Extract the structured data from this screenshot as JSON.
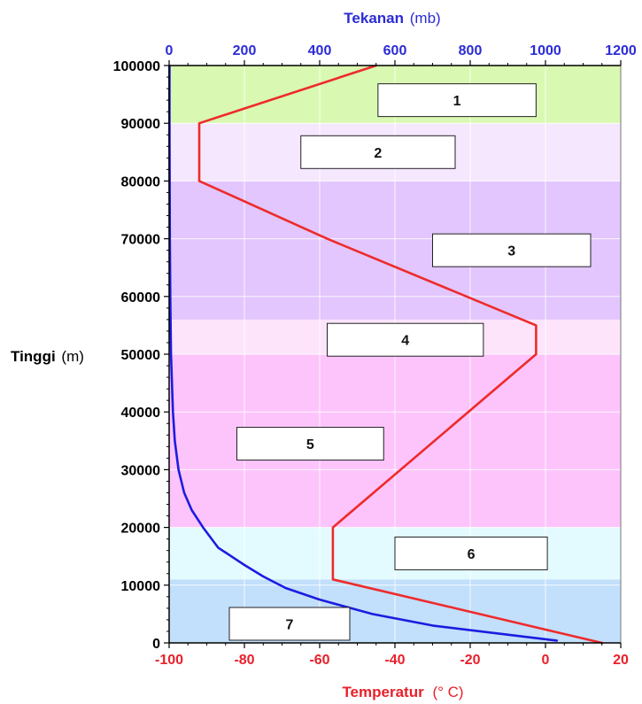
{
  "chart_data": {
    "type": "line",
    "title": "",
    "y_axis": {
      "label_bold": "Tinggi",
      "label_unit": "(m)",
      "range": [
        0,
        100000
      ],
      "ticks": [
        "0",
        "10000",
        "20000",
        "30000",
        "40000",
        "50000",
        "60000",
        "70000",
        "80000",
        "90000",
        "100000"
      ],
      "tick_values": [
        0,
        10000,
        20000,
        30000,
        40000,
        50000,
        60000,
        70000,
        80000,
        90000,
        100000
      ]
    },
    "x_axis_bottom": {
      "label_bold": "Temperatur",
      "label_unit": "(° C)",
      "range": [
        -100,
        20
      ],
      "color": "#e8202a",
      "ticks": [
        "-100",
        "-80",
        "-60",
        "-40",
        "-20",
        "0",
        "20"
      ],
      "tick_values": [
        -100,
        -80,
        -60,
        -40,
        -20,
        0,
        20
      ]
    },
    "x_axis_top": {
      "label_bold": "Tekanan",
      "label_unit": "(mb)",
      "range": [
        0,
        1200
      ],
      "color": "#2b2bd6",
      "ticks": [
        "0",
        "200",
        "400",
        "600",
        "800",
        "1000",
        "1200"
      ],
      "tick_values": [
        0,
        200,
        400,
        600,
        800,
        1000,
        1200
      ]
    },
    "layers": [
      {
        "label": "7",
        "y_from": 0,
        "y_to": 11000,
        "color": "#c2dffb",
        "box": {
          "x_from": -84,
          "x_to": -52,
          "y_center": 3300
        }
      },
      {
        "label": "6",
        "y_from": 11000,
        "y_to": 20000,
        "color": "#e3fbff",
        "box": {
          "x_from": -40,
          "x_to": 0.5,
          "y_center": 15500
        }
      },
      {
        "label": "5",
        "y_from": 20000,
        "y_to": 50000,
        "color": "#fdc4fb",
        "box": {
          "x_from": -82,
          "x_to": -43,
          "y_center": 34500
        }
      },
      {
        "label": "4",
        "y_from": 50000,
        "y_to": 56000,
        "color": "#fde4fb",
        "box": {
          "x_from": -58,
          "x_to": -16.5,
          "y_center": 52500
        }
      },
      {
        "label": "3",
        "y_from": 56000,
        "y_to": 80000,
        "color": "#e2c6fd",
        "box": {
          "x_from": -30,
          "x_to": 12,
          "y_center": 68000
        }
      },
      {
        "label": "2",
        "y_from": 80000,
        "y_to": 90000,
        "color": "#f5e7fd",
        "box": {
          "x_from": -65,
          "x_to": -24,
          "y_center": 85000
        }
      },
      {
        "label": "1",
        "y_from": 90000,
        "y_to": 100000,
        "color": "#d9f9b2",
        "box": {
          "x_from": -44.5,
          "x_to": -2.5,
          "y_center": 94000
        }
      }
    ],
    "series": [
      {
        "name": "Temperatur",
        "color": "#ee2b2b",
        "axis": "bottom",
        "points": [
          [
            15,
            0
          ],
          [
            -56.5,
            11000
          ],
          [
            -56.5,
            20000
          ],
          [
            -2.5,
            50000
          ],
          [
            -2.5,
            55000
          ],
          [
            -58,
            70000
          ],
          [
            -92,
            80000
          ],
          [
            -92,
            90000
          ],
          [
            -45,
            100000
          ]
        ]
      },
      {
        "name": "Tekanan",
        "color": "#1c1ce0",
        "axis": "top",
        "points": [
          [
            1030,
            400
          ],
          [
            700,
            3000
          ],
          [
            540,
            5000
          ],
          [
            400,
            7500
          ],
          [
            310,
            9500
          ],
          [
            250,
            11500
          ],
          [
            200,
            13500
          ],
          [
            130,
            16500
          ],
          [
            90,
            20000
          ],
          [
            60,
            23000
          ],
          [
            40,
            26000
          ],
          [
            25,
            30000
          ],
          [
            15,
            35000
          ],
          [
            10,
            40000
          ],
          [
            5,
            50000
          ],
          [
            3,
            60000
          ],
          [
            2,
            70000
          ],
          [
            1.5,
            80000
          ],
          [
            1,
            90000
          ],
          [
            1,
            100000
          ]
        ]
      }
    ]
  }
}
